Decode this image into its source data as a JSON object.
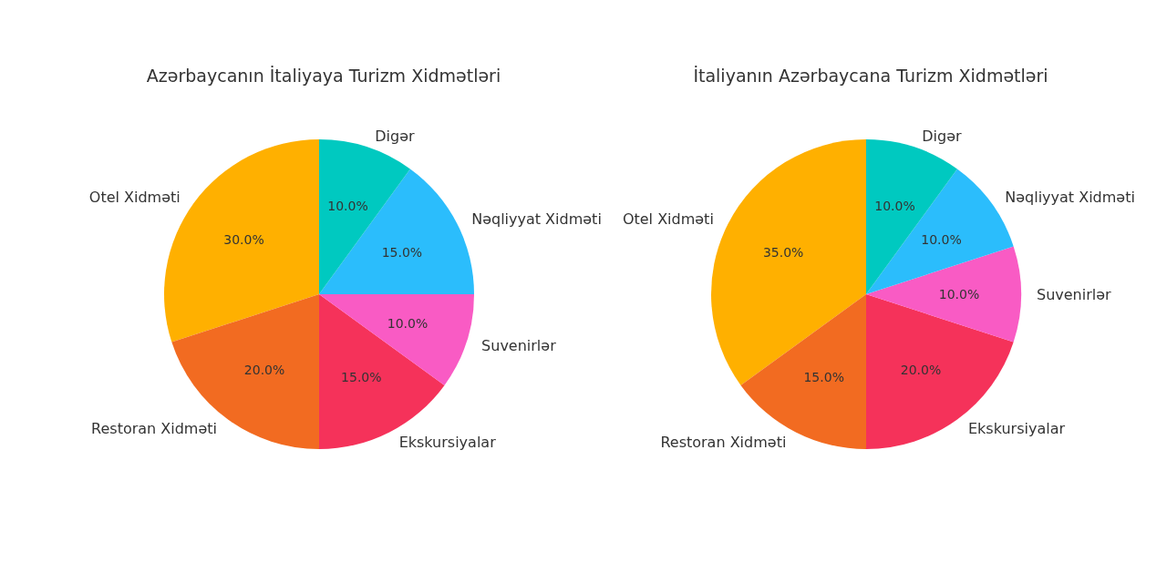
{
  "chart_data": [
    {
      "type": "pie",
      "title": "Azərbaycanın İtaliyaya Turizm Xidmətləri",
      "categories": [
        "Otel Xidməti",
        "Restoran Xidməti",
        "Ekskursiyalar",
        "Suvenirlər",
        "Nəqliyyat Xidməti",
        "Digər"
      ],
      "values": [
        30,
        20,
        15,
        10,
        15,
        10
      ],
      "colors": [
        "#ffb000",
        "#f26b21",
        "#f5325a",
        "#f95bc4",
        "#2bbdfc",
        "#00c9c0"
      ],
      "value_labels": [
        "30.0%",
        "20.0%",
        "15.0%",
        "10.0%",
        "15.0%",
        "10.0%"
      ]
    },
    {
      "type": "pie",
      "title": "İtaliyanın Azərbaycana Turizm Xidmətləri",
      "categories": [
        "Otel Xidməti",
        "Restoran Xidməti",
        "Ekskursiyalar",
        "Suvenirlər",
        "Nəqliyyat Xidməti",
        "Digər"
      ],
      "values": [
        35,
        15,
        20,
        10,
        10,
        10
      ],
      "colors": [
        "#ffb000",
        "#f26b21",
        "#f5325a",
        "#f95bc4",
        "#2bbdfc",
        "#00c9c0"
      ],
      "value_labels": [
        "35.0%",
        "15.0%",
        "20.0%",
        "10.0%",
        "10.0%",
        "10.0%"
      ]
    }
  ]
}
